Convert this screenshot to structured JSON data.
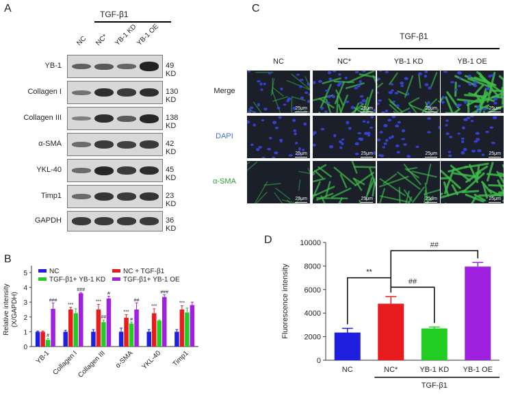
{
  "panelA": {
    "letter": "A",
    "treatment_label": "TGF-β1",
    "lanes": [
      "NC",
      "NC*",
      "YB-1 KD",
      "YB-1 OE"
    ],
    "blots": [
      {
        "name": "YB-1",
        "kd": "49 KD",
        "levels": [
          0.45,
          0.5,
          0.4,
          0.95
        ]
      },
      {
        "name": "Collagen I",
        "kd": "130 KD",
        "levels": [
          0.3,
          0.85,
          0.75,
          0.85
        ]
      },
      {
        "name": "Collagen III",
        "kd": "138 KD",
        "levels": [
          0.2,
          0.85,
          0.5,
          0.9
        ]
      },
      {
        "name": "α-SMA",
        "kd": "42 KD",
        "levels": [
          0.35,
          0.75,
          0.7,
          0.75
        ]
      },
      {
        "name": "YKL-40",
        "kd": "45 KD",
        "levels": [
          0.35,
          0.9,
          0.75,
          0.85
        ]
      },
      {
        "name": "Timp1",
        "kd": "23 KD",
        "levels": [
          0.35,
          0.8,
          0.75,
          0.8
        ]
      },
      {
        "name": "GAPDH",
        "kd": "36 KD",
        "levels": [
          0.75,
          0.75,
          0.75,
          0.75
        ]
      }
    ]
  },
  "panelB": {
    "letter": "B",
    "chart_data": {
      "type": "bar",
      "ylabel": "Relative intensity\n(X/GAPDH)",
      "ylim": [
        0,
        5
      ],
      "yticks": [
        0,
        1,
        2,
        3,
        4,
        5
      ],
      "categories": [
        "YB-1",
        "Collagen I",
        "Collagen III",
        "α-SMA",
        "YKL-40",
        "Timp1"
      ],
      "series": [
        {
          "name": "NC",
          "color": "#1f1fe0",
          "values": [
            1.0,
            1.0,
            1.0,
            1.0,
            1.0,
            1.0
          ],
          "errors": [
            0.05,
            0.1,
            0.15,
            0.25,
            0.15,
            0.15
          ]
        },
        {
          "name": "NC + TGF-β1",
          "color": "#e81c1c",
          "values": [
            1.0,
            2.5,
            2.5,
            1.95,
            2.25,
            2.5
          ],
          "errors": [
            0.05,
            0.15,
            0.35,
            0.2,
            0.3,
            0.25
          ]
        },
        {
          "name": "TGF-β1+ YB-1 KD",
          "color": "#22cc22",
          "values": [
            0.45,
            2.25,
            1.65,
            1.55,
            1.75,
            2.3
          ],
          "errors": [
            0.1,
            0.3,
            0.15,
            0.1,
            0.05,
            0.3
          ]
        },
        {
          "name": "TGF-β1+ YB-1 OE",
          "color": "#a020e0",
          "values": [
            2.55,
            3.6,
            3.25,
            2.5,
            3.35,
            2.8
          ],
          "errors": [
            0.4,
            0.05,
            0.15,
            0.45,
            0.15,
            0.2
          ]
        }
      ],
      "annotations": [
        {
          "category": 0,
          "series": 2,
          "text": "#"
        },
        {
          "category": 0,
          "series": 3,
          "text": "###"
        },
        {
          "category": 1,
          "series": 1,
          "text": "***"
        },
        {
          "category": 1,
          "series": 3,
          "text": "###"
        },
        {
          "category": 2,
          "series": 1,
          "text": "***"
        },
        {
          "category": 2,
          "series": 2,
          "text": "##"
        },
        {
          "category": 2,
          "series": 3,
          "text": "#"
        },
        {
          "category": 3,
          "series": 1,
          "text": "***"
        },
        {
          "category": 3,
          "series": 2,
          "text": "#"
        },
        {
          "category": 3,
          "series": 3,
          "text": "##"
        },
        {
          "category": 4,
          "series": 1,
          "text": "***"
        },
        {
          "category": 4,
          "series": 3,
          "text": "###"
        },
        {
          "category": 5,
          "series": 1,
          "text": "***"
        }
      ]
    }
  },
  "panelC": {
    "letter": "C",
    "treatment_label": "TGF-β1",
    "columns": [
      "NC",
      "NC*",
      "YB-1 KD",
      "YB-1 OE"
    ],
    "rows": [
      {
        "label": "Merge",
        "color": "#222222"
      },
      {
        "label": "DAPI",
        "color": "#3a6fd8"
      },
      {
        "label": "α-SMA",
        "color": "#2e9e3a"
      }
    ],
    "scale_bar": "25μm"
  },
  "panelD": {
    "letter": "D",
    "treatment_label": "TGF-β1",
    "chart_data": {
      "type": "bar",
      "ylabel": "Fluorescence intensity",
      "ylim": [
        0,
        10000
      ],
      "yticks": [
        0,
        2000,
        4000,
        6000,
        8000,
        10000
      ],
      "categories": [
        "NC",
        "NC*",
        "YB-1 KD",
        "YB-1 OE"
      ],
      "values": [
        2350,
        4800,
        2700,
        7950
      ],
      "errors": [
        350,
        600,
        120,
        350
      ],
      "colors": [
        "#1f1fe0",
        "#e81c1c",
        "#22cc22",
        "#a020e0"
      ],
      "significance": [
        {
          "from": 0,
          "to": 1,
          "text": "**"
        },
        {
          "from": 1,
          "to": 2,
          "text": "##"
        },
        {
          "from": 1,
          "to": 3,
          "text": "##"
        }
      ]
    }
  }
}
